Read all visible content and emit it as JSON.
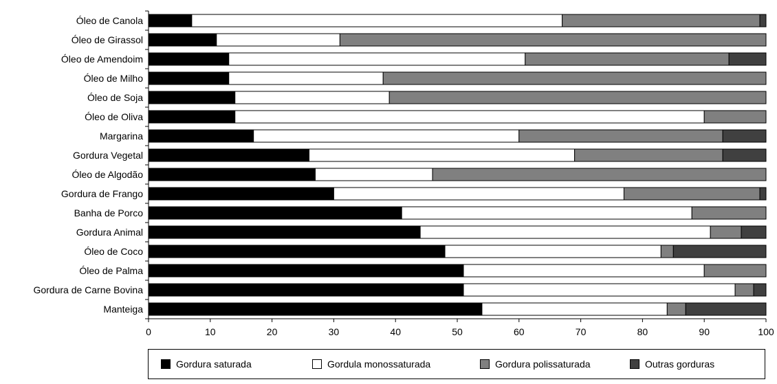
{
  "chart_data": {
    "type": "bar",
    "orientation": "horizontal",
    "stacked": true,
    "categories": [
      "Óleo de Canola",
      "Óleo de Girassol",
      "Óleo de Amendoim",
      "Óleo de Milho",
      "Óleo de Soja",
      "Óleo de Oliva",
      "Margarina",
      "Gordura Vegetal",
      "Óleo de Algodão",
      "Gordura de Frango",
      "Banha de Porco",
      "Gordura Animal",
      "Óleo de Coco",
      "Óleo de Palma",
      "Gordura de Carne Bovina",
      "Manteiga"
    ],
    "series": [
      {
        "name": "Gordura saturada",
        "color": "#000000",
        "values": [
          7,
          11,
          13,
          13,
          14,
          14,
          17,
          26,
          27,
          30,
          41,
          44,
          48,
          51,
          51,
          54
        ]
      },
      {
        "name": "Gordula monossaturada",
        "color": "#ffffff",
        "values": [
          60,
          20,
          48,
          25,
          25,
          76,
          43,
          43,
          19,
          47,
          47,
          47,
          35,
          39,
          44,
          30
        ]
      },
      {
        "name": "Gordura polissaturada",
        "color": "#808080",
        "values": [
          32,
          69,
          33,
          62,
          61,
          10,
          33,
          24,
          54,
          22,
          12,
          5,
          2,
          10,
          3,
          3
        ]
      },
      {
        "name": "Outras gorduras",
        "color": "#404040",
        "values": [
          1,
          0,
          6,
          0,
          0,
          0,
          7,
          7,
          0,
          1,
          0,
          4,
          15,
          0,
          2,
          13
        ]
      }
    ],
    "xlim": [
      0,
      100
    ],
    "xticks": [
      "0",
      "10",
      "20",
      "30",
      "40",
      "50",
      "60",
      "70",
      "80",
      "90",
      "100"
    ],
    "title": "",
    "xlabel": "",
    "ylabel": "",
    "grid": false,
    "legend_position": "bottom"
  }
}
